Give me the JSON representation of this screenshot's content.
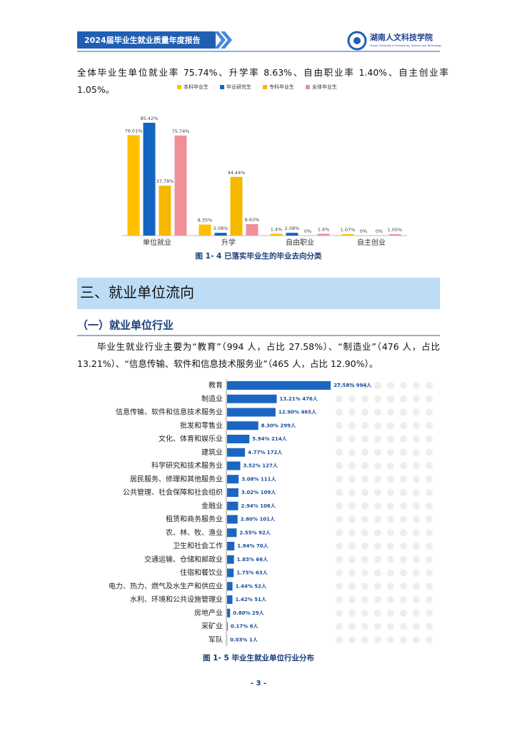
{
  "header": {
    "title": "2024届毕业生就业质量年度报告",
    "school": "湖南人文科技学院",
    "school_en": "Hunan University of Humanities, Science and Technology"
  },
  "paragraph1": "全体毕业生单位就业率 75.74%、升学率 8.63%、自由职业率 1.40%、自主创业率 1.05%。",
  "section_heading": "三、就业单位流向",
  "subheading": "（一）就业单位行业",
  "paragraph2": "毕业生就业行业主要为“教育”（994 人，占比 27.58%）、“制造业”（476 人，占比 13.21%）、“信息传输、软件和信息技术服务业”（465 人，占比 12.90%）。",
  "page_number": "- 3 -",
  "chart_data": [
    {
      "type": "bar",
      "caption": "图 1- 4 已落实毕业生的毕业去向分类",
      "categories": [
        "单位就业",
        "升学",
        "自由职业",
        "自主创业"
      ],
      "series": [
        {
          "name": "本科毕业生",
          "color": "#ffc000",
          "values": [
            76.01,
            8.35,
            1.4,
            1.07
          ],
          "value_labels": [
            "76.01%",
            "8.35%",
            "1.4%",
            "1.07%"
          ]
        },
        {
          "name": "毕业研究生",
          "color": "#1565c0",
          "values": [
            85.42,
            2.08,
            2.08,
            0
          ],
          "value_labels": [
            "85.42%",
            "2.08%",
            "2.08%",
            "0%"
          ]
        },
        {
          "name": "专科毕业生",
          "color": "#f5b800",
          "values": [
            37.78,
            44.44,
            0,
            0
          ],
          "value_labels": [
            "37.78%",
            "44.44%",
            "0%",
            "0%"
          ]
        },
        {
          "name": "全体毕业生",
          "color": "#ee8f9a",
          "values": [
            75.74,
            8.63,
            1.4,
            1.05
          ],
          "value_labels": [
            "75.74%",
            "8.63%",
            "1.4%",
            "1.05%"
          ]
        }
      ]
    },
    {
      "type": "barh",
      "caption": "图 1- 5 毕业生就业单位行业分布",
      "color": "#1a66c2",
      "categories": [
        "教育",
        "制造业",
        "信息传输、软件和信息技术服务业",
        "批发和零售业",
        "文化、体育和娱乐业",
        "建筑业",
        "科学研究和技术服务业",
        "居民服务、修理和其他服务业",
        "公共管理、社会保障和社会组织",
        "金融业",
        "租赁和商务服务业",
        "农、林、牧、渔业",
        "卫生和社会工作",
        "交通运输、仓储和邮政业",
        "住宿和餐饮业",
        "电力、热力、燃气及水生产和供应业",
        "水利、环境和公共设施管理业",
        "房地产业",
        "采矿业",
        "军队"
      ],
      "values": [
        27.58,
        13.21,
        12.9,
        8.3,
        5.94,
        4.77,
        3.52,
        3.08,
        3.02,
        2.94,
        2.8,
        2.55,
        1.94,
        1.83,
        1.75,
        1.44,
        1.42,
        0.8,
        0.17,
        0.03
      ],
      "value_labels": [
        "27.58% 994人",
        "13.21% 476人",
        "12.90% 465人",
        "8.30% 299人",
        "5.94% 214人",
        "4.77% 172人",
        "3.52% 127人",
        "3.08% 111人",
        "3.02% 109人",
        "2.94% 106人",
        "2.80% 101人",
        "2.55% 92人",
        "1.94% 70人",
        "1.83% 66人",
        "1.75% 63人",
        "1.44% 52人",
        "1.42% 51人",
        "0.80% 29人",
        "0.17% 6人",
        "0.03% 1人"
      ]
    }
  ]
}
